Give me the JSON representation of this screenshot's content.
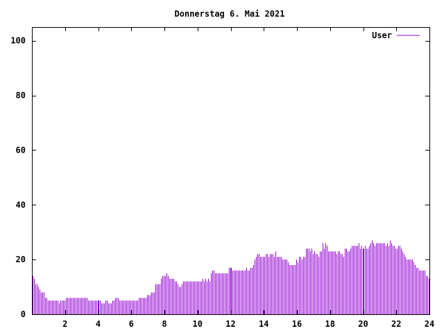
{
  "chart_data": {
    "type": "bar",
    "title": "Donnerstag 6. Mai 2021",
    "xlabel": "",
    "ylabel": "",
    "xlim": [
      0,
      24
    ],
    "ylim": [
      0,
      105
    ],
    "x_ticks": [
      "2",
      "4",
      "6",
      "8",
      "10",
      "12",
      "14",
      "16",
      "18",
      "20",
      "22",
      "24"
    ],
    "y_ticks": [
      "0",
      "20",
      "40",
      "60",
      "80",
      "100"
    ],
    "legend": {
      "position": "top-right"
    },
    "colors": {
      "series": "#9400d3",
      "axis": "#000000",
      "background": "#ffffff"
    },
    "series": [
      {
        "name": "User",
        "values": [
          14,
          13,
          11,
          11,
          10,
          9,
          8,
          8,
          8,
          6,
          6,
          5,
          5,
          5,
          5,
          5,
          5,
          5,
          5,
          4,
          5,
          5,
          5,
          5,
          6,
          6,
          6,
          6,
          6,
          6,
          6,
          6,
          6,
          6,
          6,
          6,
          6,
          6,
          6,
          6,
          5,
          5,
          5,
          5,
          5,
          5,
          5,
          5,
          5,
          5,
          4,
          4,
          4,
          5,
          5,
          4,
          4,
          4,
          5,
          5,
          6,
          6,
          6,
          5,
          5,
          5,
          5,
          5,
          5,
          5,
          5,
          5,
          5,
          5,
          5,
          5,
          5,
          6,
          6,
          6,
          6,
          6,
          6,
          7,
          7,
          7,
          8,
          8,
          8,
          11,
          11,
          11,
          11,
          13,
          14,
          14,
          14,
          15,
          14,
          13,
          13,
          13,
          13,
          12,
          12,
          11,
          10,
          10,
          11,
          12,
          12,
          12,
          12,
          12,
          12,
          12,
          12,
          12,
          12,
          12,
          12,
          12,
          12,
          13,
          12,
          13,
          12,
          13,
          12,
          15,
          16,
          16,
          15,
          15,
          15,
          15,
          15,
          15,
          15,
          15,
          15,
          15,
          17,
          17,
          17,
          16,
          16,
          16,
          16,
          16,
          16,
          16,
          16,
          16,
          16,
          17,
          16,
          16,
          17,
          17,
          18,
          20,
          21,
          22,
          22,
          21,
          21,
          21,
          21,
          22,
          22,
          21,
          22,
          22,
          22,
          21,
          23,
          21,
          21,
          21,
          21,
          20,
          20,
          20,
          20,
          19,
          18,
          18,
          18,
          18,
          18,
          20,
          19,
          21,
          21,
          20,
          21,
          21,
          24,
          24,
          24,
          23,
          24,
          22,
          23,
          22,
          22,
          21,
          23,
          23,
          26,
          24,
          26,
          25,
          23,
          23,
          23,
          23,
          23,
          23,
          22,
          23,
          23,
          22,
          22,
          21,
          24,
          24,
          23,
          23,
          24,
          25,
          25,
          25,
          25,
          25,
          26,
          24,
          25,
          24,
          24,
          25,
          24,
          24,
          25,
          26,
          27,
          26,
          25,
          26,
          26,
          26,
          26,
          26,
          26,
          26,
          25,
          26,
          25,
          27,
          26,
          25,
          25,
          24,
          24,
          25,
          25,
          24,
          23,
          22,
          21,
          20,
          20,
          20,
          20,
          20,
          19,
          18,
          17,
          17,
          16,
          16,
          16,
          16,
          16,
          14,
          14,
          13
        ]
      }
    ]
  }
}
